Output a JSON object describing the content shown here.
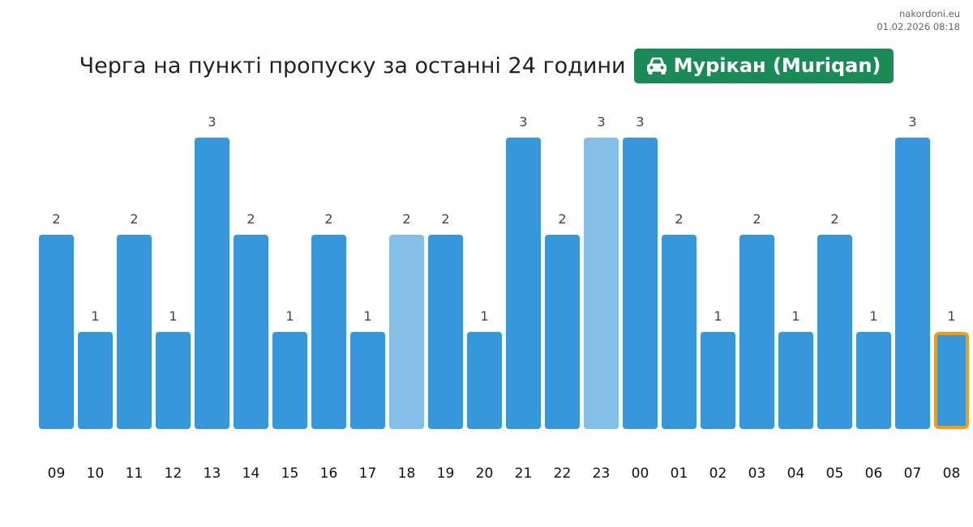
{
  "site": {
    "name": "nakordoni.eu",
    "timestamp": "01.02.2026 08:18"
  },
  "header": {
    "title": "Черга на пункті пропуску за останні 24 години",
    "checkpoint": "Мурікан (Muriqan)",
    "icon": "car-icon"
  },
  "colors": {
    "bar": "#3697db",
    "bar_faded": "#85bee7",
    "highlight_border": "#f39c12",
    "badge": "#1a8b57"
  },
  "chart_data": {
    "type": "bar",
    "title": "Черга на пункті пропуску за останні 24 години",
    "categories": [
      "09",
      "10",
      "11",
      "12",
      "13",
      "14",
      "15",
      "16",
      "17",
      "18",
      "19",
      "20",
      "21",
      "22",
      "23",
      "00",
      "01",
      "02",
      "03",
      "04",
      "05",
      "06",
      "07",
      "08"
    ],
    "values": [
      2,
      1,
      2,
      1,
      3,
      2,
      1,
      2,
      1,
      2,
      2,
      1,
      3,
      2,
      3,
      3,
      2,
      1,
      2,
      1,
      2,
      1,
      3,
      1
    ],
    "faded_categories": [
      "18",
      "23"
    ],
    "highlighted_category": "08",
    "ylim": [
      0,
      3
    ],
    "grid": false,
    "legend": "none",
    "data_labels": true
  }
}
